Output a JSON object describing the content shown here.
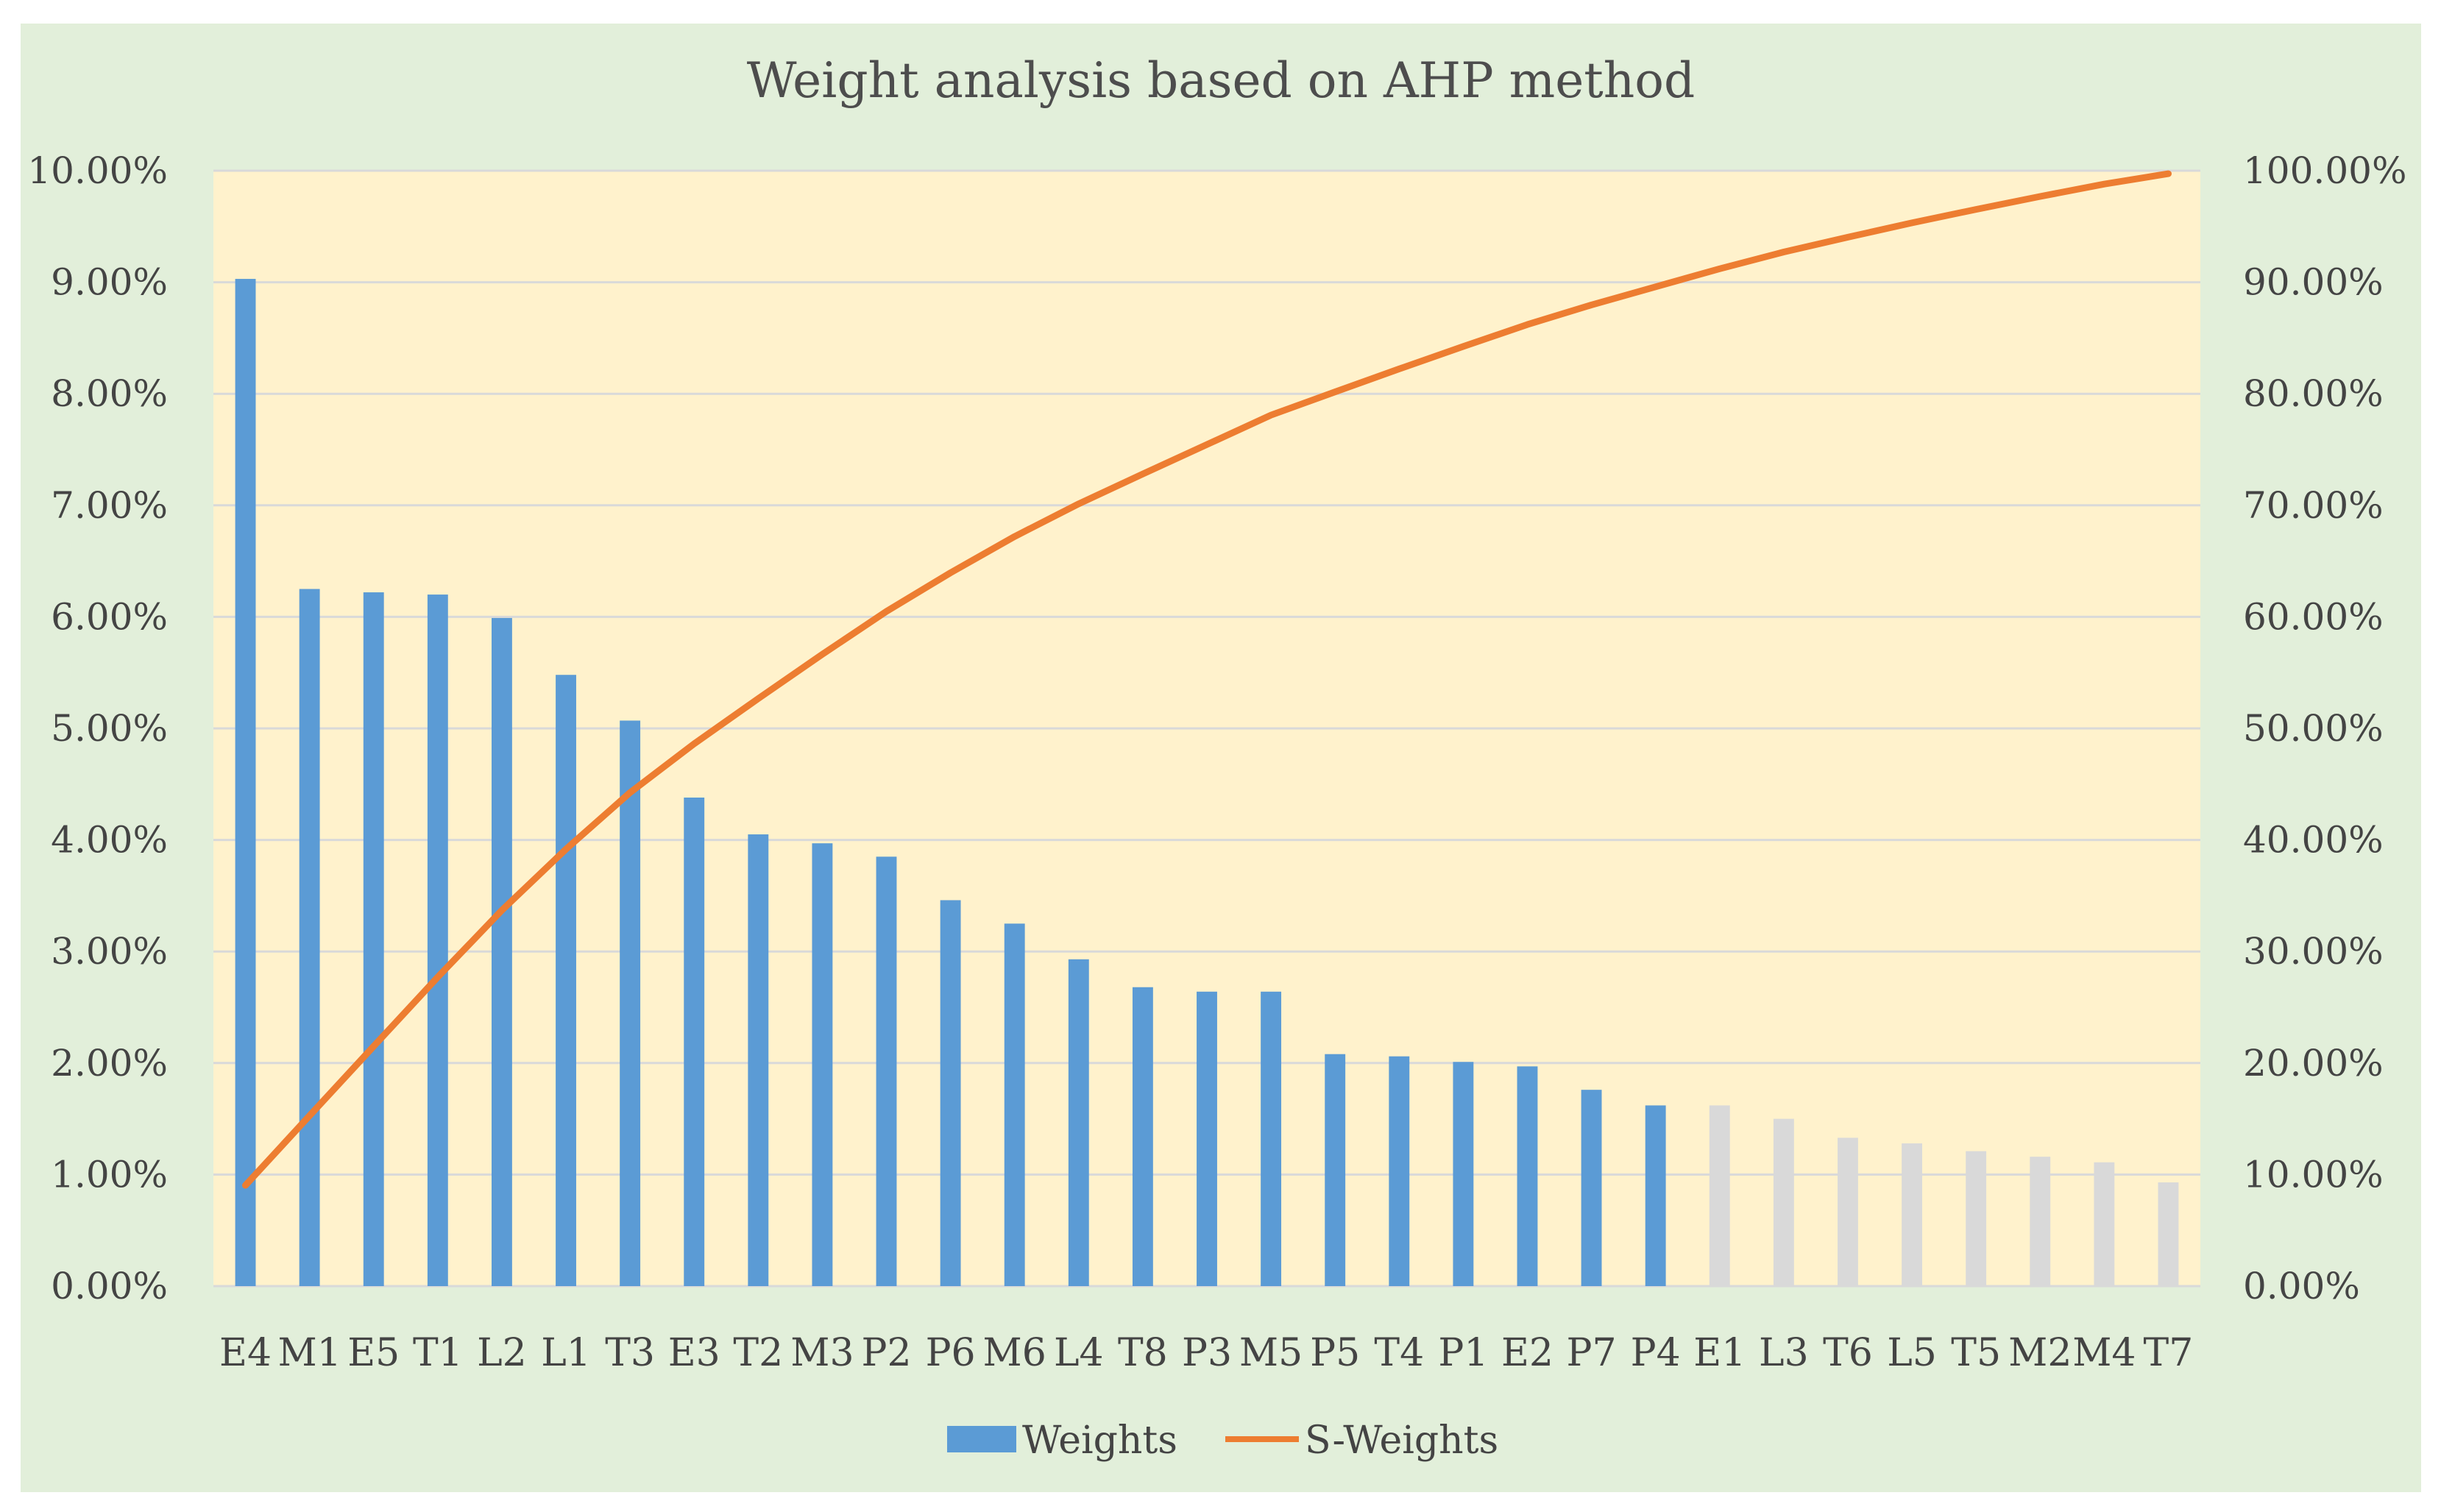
{
  "chart_data": {
    "type": "bar",
    "title": "Weight analysis based on AHP method",
    "categories": [
      "E4",
      "M1",
      "E5",
      "T1",
      "L2",
      "L1",
      "T3",
      "E3",
      "T2",
      "M3",
      "P2",
      "P6",
      "M6",
      "L4",
      "T8",
      "P3",
      "M5",
      "P5",
      "T4",
      "P1",
      "E2",
      "P7",
      "P4",
      "E1",
      "L3",
      "T6",
      "L5",
      "T5",
      "M2",
      "M4",
      "T7"
    ],
    "series": [
      {
        "name": "Weights",
        "axis": "left",
        "kind": "bar",
        "values": [
          9.03,
          6.25,
          6.22,
          6.2,
          5.99,
          5.48,
          5.07,
          4.38,
          4.05,
          3.97,
          3.85,
          3.46,
          3.25,
          2.93,
          2.68,
          2.64,
          2.64,
          2.08,
          2.06,
          2.01,
          1.97,
          1.76,
          1.62,
          1.62,
          1.5,
          1.33,
          1.28,
          1.21,
          1.16,
          1.11,
          0.93
        ]
      },
      {
        "name": "S-Weights",
        "axis": "right",
        "kind": "line",
        "values": [
          9.03,
          15.28,
          21.5,
          27.7,
          33.69,
          39.17,
          44.24,
          48.62,
          52.67,
          56.64,
          60.49,
          63.95,
          67.2,
          70.13,
          72.81,
          75.45,
          78.09,
          80.17,
          82.23,
          84.24,
          86.21,
          87.97,
          89.59,
          91.21,
          92.71,
          94.04,
          95.32,
          96.53,
          97.69,
          98.8,
          99.73
        ]
      }
    ],
    "highlight_count": 23,
    "colors": {
      "background": "#e2efda",
      "plot_background": "#fff2cc",
      "bar_primary": "#5b9bd5",
      "bar_secondary": "#d9d9d9",
      "line": "#ed7d31",
      "grid": "#d9d9d9"
    },
    "y_left": {
      "min": 0,
      "max": 10,
      "step": 1,
      "tick_labels": [
        "0.00%",
        "1.00%",
        "2.00%",
        "3.00%",
        "4.00%",
        "5.00%",
        "6.00%",
        "7.00%",
        "8.00%",
        "9.00%",
        "10.00%"
      ]
    },
    "y_right": {
      "min": 0,
      "max": 100,
      "step": 10,
      "tick_labels": [
        "0.00%",
        "10.00%",
        "20.00%",
        "30.00%",
        "40.00%",
        "50.00%",
        "60.00%",
        "70.00%",
        "80.00%",
        "90.00%",
        "100.00%"
      ]
    },
    "legend": {
      "position": "bottom",
      "items": [
        "Weights",
        "S-Weights"
      ]
    },
    "grid": true
  }
}
